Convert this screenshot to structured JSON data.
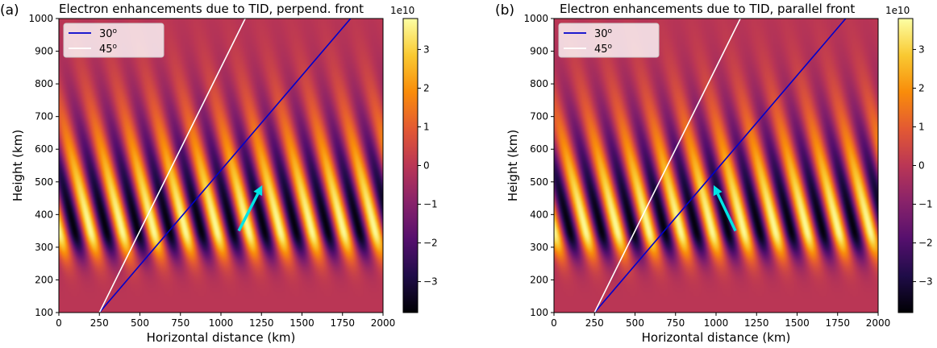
{
  "chart_data": [
    {
      "type": "heatmap",
      "panel_label": "(a)",
      "title": "Electron enhancements due to TID, perpend. front",
      "xlabel": "Horizontal distance (km)",
      "ylabel": "Height (km)",
      "xlim": [
        0,
        2000
      ],
      "ylim": [
        100,
        1000
      ],
      "xticks": [
        0,
        250,
        500,
        750,
        1000,
        1250,
        1500,
        1750,
        2000
      ],
      "yticks": [
        100,
        200,
        300,
        400,
        500,
        600,
        700,
        800,
        900,
        1000
      ],
      "colormap": "inferno",
      "colorbar": {
        "scale_label": "1e10",
        "vmin": -3.8,
        "vmax": 3.8,
        "ticks": [
          -3,
          -2,
          -1,
          0,
          1,
          2,
          3
        ],
        "tick_labels": [
          "−3",
          "−2",
          "−1",
          "0",
          "1",
          "2",
          "3"
        ]
      },
      "field": {
        "peak_height_km": 350,
        "wavelength_x_km": 195,
        "tilt_km_per_km": 0.5
      },
      "lines": [
        {
          "name": "30 deg line",
          "label": "30",
          "color": "#0000cc",
          "x": [
            250,
            1800
          ],
          "y": [
            100,
            1000
          ]
        },
        {
          "name": "45 deg line",
          "label": "45",
          "color": "#ffffff",
          "x": [
            250,
            1150
          ],
          "y": [
            100,
            1000
          ]
        }
      ],
      "legend_position": "top-left",
      "arrow": {
        "color": "#00e5e5",
        "from": [
          1110,
          350
        ],
        "to": [
          1255,
          490
        ]
      }
    },
    {
      "type": "heatmap",
      "panel_label": "(b)",
      "title": "Electron enhancements due to TID, parallel front",
      "xlabel": "Horizontal distance (km)",
      "ylabel": "Height (km)",
      "xlim": [
        0,
        2000
      ],
      "ylim": [
        100,
        1000
      ],
      "xticks": [
        0,
        250,
        500,
        750,
        1000,
        1250,
        1500,
        1750,
        2000
      ],
      "yticks": [
        100,
        200,
        300,
        400,
        500,
        600,
        700,
        800,
        900,
        1000
      ],
      "colormap": "inferno",
      "colorbar": {
        "scale_label": "1e10",
        "vmin": -3.8,
        "vmax": 3.8,
        "ticks": [
          -3,
          -2,
          -1,
          0,
          1,
          2,
          3
        ],
        "tick_labels": [
          "−3",
          "−2",
          "−1",
          "0",
          "1",
          "2",
          "3"
        ]
      },
      "field": {
        "peak_height_km": 350,
        "wavelength_x_km": 195,
        "tilt_km_per_km": 0.5
      },
      "lines": [
        {
          "name": "30 deg line",
          "label": "30",
          "color": "#0000cc",
          "x": [
            250,
            1800
          ],
          "y": [
            100,
            1000
          ]
        },
        {
          "name": "45 deg line",
          "label": "45",
          "color": "#ffffff",
          "x": [
            250,
            1150
          ],
          "y": [
            100,
            1000
          ]
        }
      ],
      "legend_position": "top-left",
      "arrow": {
        "color": "#00e5e5",
        "from": [
          1120,
          350
        ],
        "to": [
          985,
          490
        ]
      }
    }
  ]
}
